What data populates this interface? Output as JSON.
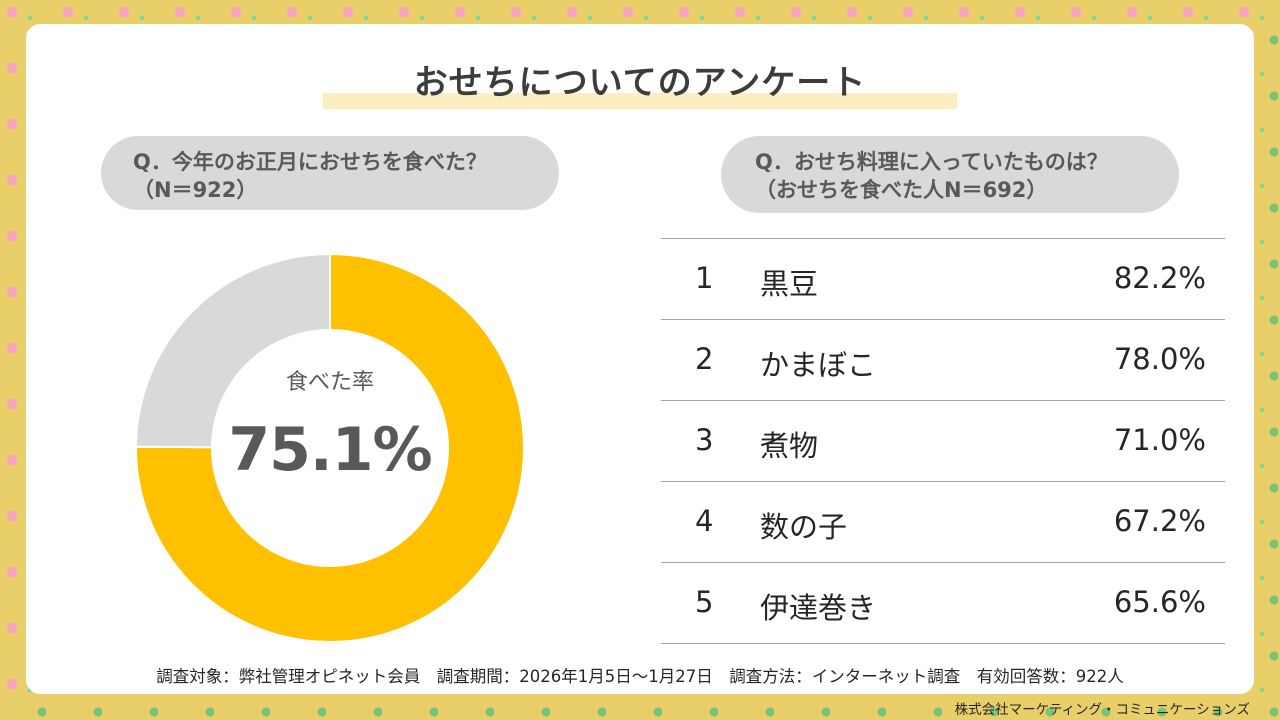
{
  "title": "おせちについてのアンケート",
  "left": {
    "question_line1": "Q．今年のお正月におせちを食べた？",
    "question_line2": "（N＝922）",
    "donut_label": "食べた率",
    "donut_value": "75.1%"
  },
  "right": {
    "question_line1": "Q．おせち料理に入っていたものは？",
    "question_line2": "（おせちを食べた人N＝692）",
    "ranking": [
      {
        "rank": "1",
        "item": "黒豆",
        "percent": "82.2%"
      },
      {
        "rank": "2",
        "item": "かまぼこ",
        "percent": "78.0%"
      },
      {
        "rank": "3",
        "item": "煮物",
        "percent": "71.0%"
      },
      {
        "rank": "4",
        "item": "数の子",
        "percent": "67.2%"
      },
      {
        "rank": "5",
        "item": "伊達巻き",
        "percent": "65.6%"
      }
    ]
  },
  "footnote": "調査対象：弊社管理オピネット会員　調査期間：2026年1月5日～1月27日　調査方法：インターネット調査　有効回答数：922人",
  "credit": "株式会社マーケティング・コミュニケーションズ",
  "colors": {
    "ate": "#ffc000",
    "not_ate": "#d9d9d9"
  },
  "chart_data": [
    {
      "type": "pie",
      "labels": [
        "食べた率",
        ""
      ],
      "values": [
        75.1,
        24.9
      ]
    },
    {
      "type": "table",
      "columns": [
        "rank",
        "item",
        "percent"
      ],
      "rows": [
        [
          "1",
          "黒豆",
          82.2
        ],
        [
          "2",
          "かまぼこ",
          78.0
        ],
        [
          "3",
          "煮物",
          71.0
        ],
        [
          "4",
          "数の子",
          67.2
        ],
        [
          "5",
          "伊達巻き",
          65.6
        ]
      ]
    }
  ]
}
